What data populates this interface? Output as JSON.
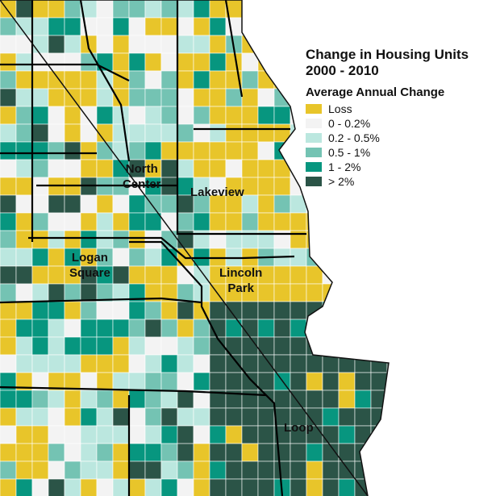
{
  "legend": {
    "title_line1": "Change in Housing Units",
    "title_line2": "2000 - 2010",
    "subtitle": "Average Annual Change",
    "items": [
      {
        "label": "Loss",
        "color": "#e8c52a"
      },
      {
        "label": "0 - 0.2%",
        "color": "#f3f3f3"
      },
      {
        "label": "0.2 - 0.5%",
        "color": "#bbe7df"
      },
      {
        "label": "0.5 - 1%",
        "color": "#74c3b3"
      },
      {
        "label": "1 - 2%",
        "color": "#07967f"
      },
      {
        "label": "> 2%",
        "color": "#2b5447"
      }
    ]
  },
  "neighborhoods": [
    {
      "name_line1": "North",
      "name_line2": "Center"
    },
    {
      "name_line1": "Lakeview",
      "name_line2": ""
    },
    {
      "name_line1": "Logan",
      "name_line2": "Square"
    },
    {
      "name_line1": "Lincoln",
      "name_line2": "Park"
    },
    {
      "name_line1": "Loop",
      "name_line2": ""
    }
  ]
}
